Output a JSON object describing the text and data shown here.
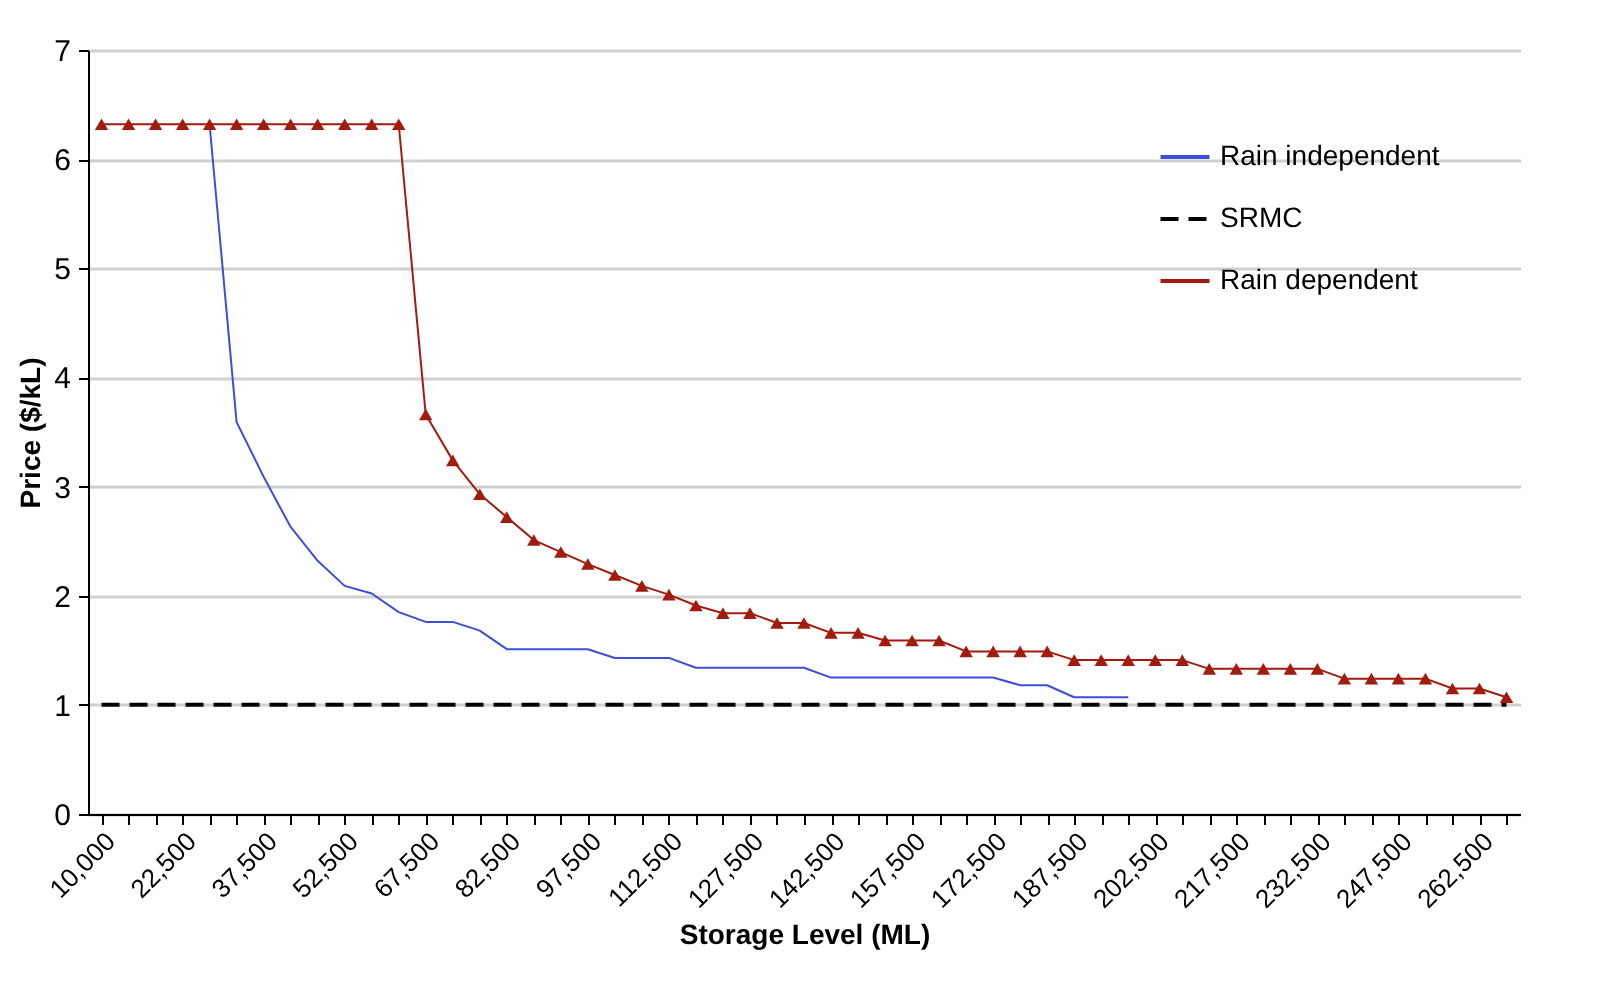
{
  "chart_data": {
    "type": "line",
    "xlabel": "Storage Level (ML)",
    "ylabel": "Price ($/kL)",
    "categories": [
      "10,000",
      null,
      null,
      "22,500",
      null,
      null,
      "37,500",
      null,
      null,
      "52,500",
      null,
      null,
      "67,500",
      null,
      null,
      "82,500",
      null,
      null,
      "97,500",
      null,
      null,
      "112,500",
      null,
      null,
      "127,500",
      null,
      null,
      "142,500",
      null,
      null,
      "157,500",
      null,
      null,
      "172,500",
      null,
      null,
      "187,500",
      null,
      null,
      "202,500",
      null,
      null,
      "217,500",
      null,
      null,
      "232,500",
      null,
      null,
      "247,500",
      null,
      null,
      "262,500",
      null
    ],
    "series": [
      {
        "name": "Rain independent",
        "color": "#3b4fd8",
        "marker": "none",
        "line_style": "solid",
        "values": [
          null,
          null,
          null,
          null,
          6.32,
          3.59,
          3.09,
          2.63,
          2.32,
          2.09,
          2.02,
          1.85,
          1.76,
          1.76,
          1.68,
          1.51,
          1.51,
          1.51,
          1.51,
          1.43,
          1.43,
          1.43,
          1.34,
          1.34,
          1.34,
          1.34,
          1.34,
          1.25,
          1.25,
          1.25,
          1.25,
          1.25,
          1.25,
          1.25,
          1.18,
          1.18,
          1.07,
          1.07,
          1.07,
          null,
          null,
          null,
          null,
          null,
          null,
          null,
          null,
          null,
          null,
          null,
          null,
          null,
          null
        ]
      },
      {
        "name": "SRMC",
        "color": "#000000",
        "marker": "none",
        "line_style": "dashed",
        "values": [
          1,
          1,
          1,
          1,
          1,
          1,
          1,
          1,
          1,
          1,
          1,
          1,
          1,
          1,
          1,
          1,
          1,
          1,
          1,
          1,
          1,
          1,
          1,
          1,
          1,
          1,
          1,
          1,
          1,
          1,
          1,
          1,
          1,
          1,
          1,
          1,
          1,
          1,
          1,
          1,
          1,
          1,
          1,
          1,
          1,
          1,
          1,
          1,
          1,
          1,
          1,
          1,
          1
        ]
      },
      {
        "name": "Rain dependent",
        "color": "#a31b0e",
        "marker": "triangle",
        "line_style": "solid",
        "values": [
          6.32,
          6.32,
          6.32,
          6.32,
          6.32,
          6.32,
          6.32,
          6.32,
          6.32,
          6.32,
          6.32,
          6.32,
          3.66,
          3.24,
          2.93,
          2.72,
          2.51,
          2.4,
          2.29,
          2.19,
          2.09,
          2.01,
          1.91,
          1.84,
          1.84,
          1.75,
          1.75,
          1.66,
          1.66,
          1.59,
          1.59,
          1.59,
          1.49,
          1.49,
          1.49,
          1.49,
          1.41,
          1.41,
          1.41,
          1.41,
          1.41,
          1.33,
          1.33,
          1.33,
          1.33,
          1.33,
          1.24,
          1.24,
          1.24,
          1.24,
          1.15,
          1.15,
          1.07
        ]
      }
    ],
    "ylim": [
      0,
      7
    ],
    "yticks": [
      0,
      1,
      2,
      3,
      4,
      5,
      6,
      7
    ],
    "grid": "y",
    "legend": "top right"
  }
}
